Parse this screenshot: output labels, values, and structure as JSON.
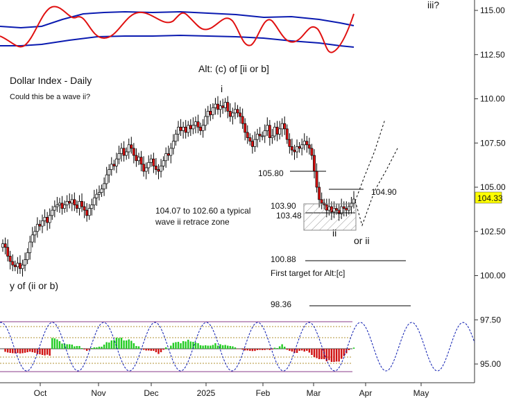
{
  "chart_data": {
    "type": "candlestick",
    "title": "Dollar Index - Daily",
    "subtitle": "Could this be a wave ii?",
    "y_axis": {
      "side": "right",
      "ticks": [
        "115.00",
        "112.50",
        "110.00",
        "107.50",
        "105.00",
        "102.50",
        "100.00",
        "97.50",
        "95.00"
      ],
      "current_price": "104.33"
    },
    "x_axis": {
      "ticks": [
        "Oct",
        "Nov",
        "Dec",
        "2025",
        "Feb",
        "Mar",
        "Apr",
        "May"
      ]
    },
    "price_series": [
      [
        101.8,
        101.6,
        101.1,
        100.8,
        100.6,
        100.5,
        100.7,
        100.4,
        100.6,
        100.9,
        101.3,
        101.9,
        102.3,
        102.5,
        102.9,
        102.8,
        103.1,
        103.3,
        103.0,
        103.4,
        103.7,
        103.9,
        104.0,
        104.1,
        103.8,
        104.0,
        104.2,
        104.1,
        104.3,
        104.0,
        103.8,
        104.2,
        103.9,
        103.7,
        103.4,
        103.8,
        104.0,
        104.4,
        104.6,
        104.7,
        104.9,
        105.2,
        105.7,
        106.0,
        106.3,
        106.2,
        106.6,
        106.9,
        107.2,
        106.8,
        107.0,
        107.4,
        107.2,
        106.8,
        106.5,
        106.7,
        106.3,
        105.9,
        106.1,
        106.4,
        106.6,
        106.2,
        106.0,
        105.9,
        106.2,
        106.5,
        106.9,
        106.8,
        107.2,
        107.6,
        108.0,
        108.4,
        108.2,
        108.4,
        108.1,
        108.5,
        108.3,
        108.5,
        108.7,
        108.4,
        108.2,
        108.5,
        109.0,
        109.3,
        109.1,
        109.5,
        109.7,
        109.4,
        109.6,
        109.5,
        109.8,
        109.3,
        109.0,
        109.2,
        109.4,
        109.2,
        109.0,
        108.6,
        108.1,
        107.8,
        107.6,
        107.3,
        107.7,
        108.0,
        107.9,
        107.9,
        108.2,
        108.5,
        107.8,
        107.9,
        108.4,
        108.0,
        108.3,
        108.6,
        108.3,
        107.7,
        107.3,
        107.1,
        107.0,
        107.3,
        107.2,
        107.4,
        107.6,
        107.4,
        107.2,
        106.8,
        105.9,
        105.0,
        104.3,
        104.1,
        104.0,
        103.7,
        103.9,
        103.6,
        103.8,
        103.7,
        103.5,
        103.9,
        103.8,
        103.7,
        103.9,
        104.1,
        104.33
      ],
      []
    ],
    "annotations": [
      {
        "text": "iii?"
      },
      {
        "text": "Alt: (c) of [ii or b]"
      },
      {
        "text": "i"
      },
      {
        "text": "105.80"
      },
      {
        "text": "104.90"
      },
      {
        "text": "103.90"
      },
      {
        "text": "103.48"
      },
      {
        "text": "ii"
      },
      {
        "text": "or ii"
      },
      {
        "text": "104.07 to 102.60 a typical"
      },
      {
        "text": "wave ii retrace zone"
      },
      {
        "text": "100.88"
      },
      {
        "text": "First target for Alt:[c]"
      },
      {
        "text": "98.36"
      },
      {
        "text": "y of (ii or b)"
      }
    ],
    "levels": [
      105.8,
      104.9,
      103.9,
      103.48,
      100.88,
      98.36
    ],
    "retrace_zone": [
      102.6,
      104.07
    ],
    "colors": {
      "up": "#ffffff",
      "down": "#e01010",
      "band": "#0a1ab0",
      "oscillator": "#e01010",
      "cycle": "#0a1ab0",
      "histogram_up": "#22cc22",
      "histogram_down": "#d01010",
      "price_tag": "#ffff00"
    }
  }
}
